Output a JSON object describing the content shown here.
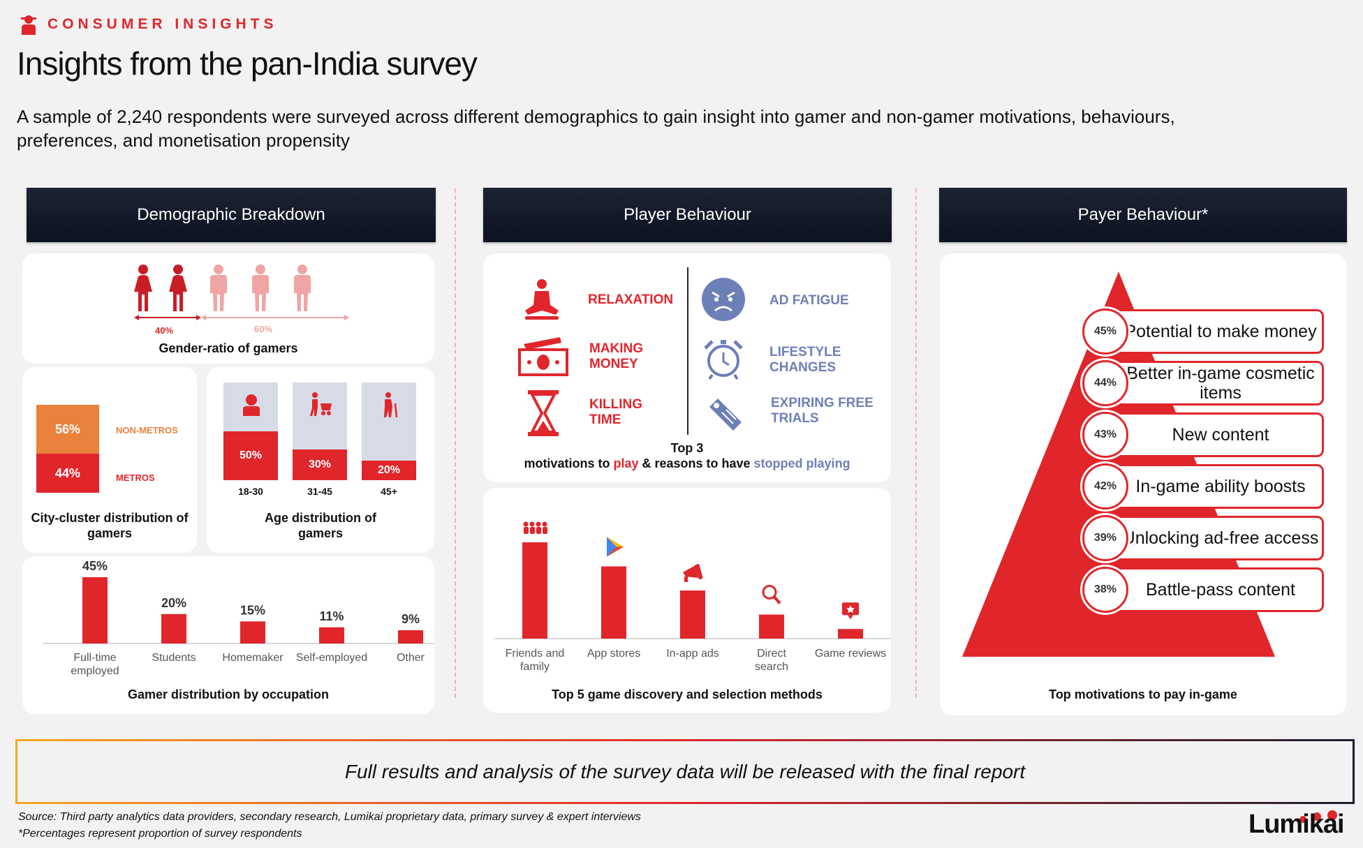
{
  "header": {
    "kicker": "CONSUMER INSIGHTS",
    "title": "Insights from the pan-India survey",
    "subtitle": "A sample of 2,240 respondents were surveyed across different demographics to gain insight into gamer and non-gamer motivations, behaviours, preferences, and monetisation propensity"
  },
  "columns": {
    "demographic": "Demographic Breakdown",
    "player": "Player Behaviour",
    "payer": "Payer Behaviour*"
  },
  "gender": {
    "female_pct": "40%",
    "male_pct": "60%",
    "label": "Gender-ratio of gamers"
  },
  "city": {
    "nonmetro_pct": "56%",
    "nonmetro_label": "NON-METROS",
    "metro_pct": "44%",
    "metro_label": "METROS",
    "label": "City-cluster distribution of gamers"
  },
  "age": {
    "label": "Age distribution of gamers",
    "groups": [
      {
        "range": "18-30",
        "pct": "50%"
      },
      {
        "range": "31-45",
        "pct": "30%"
      },
      {
        "range": "45+",
        "pct": "20%"
      }
    ]
  },
  "occupation": {
    "label": "Gamer distribution by occupation"
  },
  "motivations": {
    "play": [
      {
        "text_l1": "RELAXATION",
        "text_l2": ""
      },
      {
        "text_l1": "MAKING",
        "text_l2": "MONEY"
      },
      {
        "text_l1": "KILLING",
        "text_l2": "TIME"
      }
    ],
    "stopped": [
      {
        "text_l1": "AD FATIGUE",
        "text_l2": ""
      },
      {
        "text_l1": "LIFESTYLE",
        "text_l2": "CHANGES"
      },
      {
        "text_l1": "EXPIRING FREE",
        "text_l2": "TRIALS"
      }
    ],
    "caption_l1": "Top 3",
    "caption_a": "motivations to ",
    "caption_play": "play",
    "caption_b": " & reasons to have ",
    "caption_stopped": "stopped playing"
  },
  "discovery": {
    "label": "Top 5 game discovery and selection methods"
  },
  "pay": {
    "label": "Top motivations to pay in-game"
  },
  "chart_data": [
    {
      "type": "bar",
      "title": "Gamer distribution by occupation",
      "categories": [
        "Full-time employed",
        "Students",
        "Homemaker",
        "Self-employed",
        "Other"
      ],
      "values": [
        45,
        20,
        15,
        11,
        9
      ],
      "value_labels": [
        "45%",
        "20%",
        "15%",
        "11%",
        "9%"
      ]
    },
    {
      "type": "bar",
      "title": "Top 5 game discovery and selection methods",
      "categories": [
        "Friends and family",
        "App stores",
        "In-app ads",
        "Direct search",
        "Game reviews"
      ],
      "values": [
        100,
        75,
        50,
        25,
        10
      ]
    },
    {
      "type": "bar",
      "title": "Top motivations to pay in-game",
      "categories": [
        "Potential to make money",
        "Better in-game cosmetic items",
        "New content",
        "In-game ability boosts",
        "Unlocking ad-free access",
        "Battle-pass content"
      ],
      "values": [
        45,
        44,
        43,
        42,
        39,
        38
      ],
      "value_labels": [
        "45%",
        "44%",
        "43%",
        "42%",
        "39%",
        "38%"
      ]
    }
  ],
  "colors": {
    "red": "#e0262b",
    "pink": "#f0a4a4",
    "orange": "#e8823c",
    "navy": "#131a29",
    "blue": "#6d7fb8"
  },
  "footer": {
    "note": "Full results and analysis of the survey data will be released with the final report",
    "source": "Source: Third party analytics data providers, secondary research, Lumikai proprietary data, primary survey & expert interviews",
    "footnote": "*Percentages represent proportion of survey respondents",
    "logo": "Lumikai"
  }
}
